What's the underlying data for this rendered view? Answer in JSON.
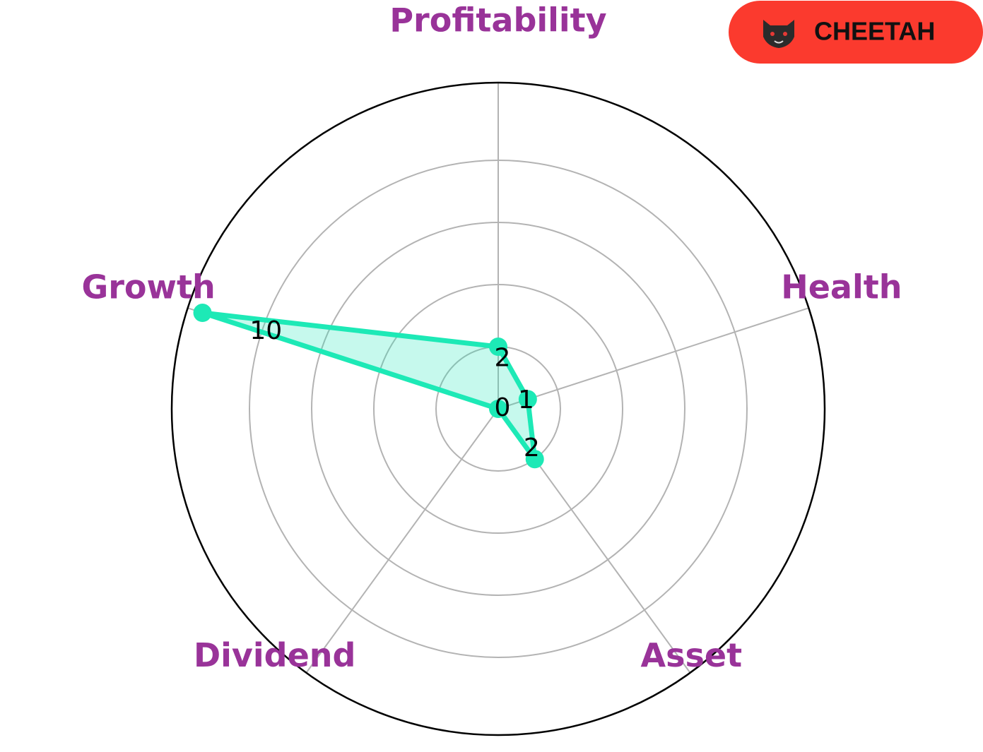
{
  "chart_data": {
    "type": "radar",
    "categories": [
      "Profitability",
      "Health",
      "Asset",
      "Dividend",
      "Growth"
    ],
    "values": [
      2,
      1,
      2,
      0,
      10
    ],
    "color": "#1de9b6",
    "ylim": [
      0,
      10.5
    ],
    "yticks": [
      2,
      4,
      6,
      8
    ],
    "grid": true
  },
  "badge": {
    "label": "CHEETAH",
    "color": "#fb3a2e"
  }
}
